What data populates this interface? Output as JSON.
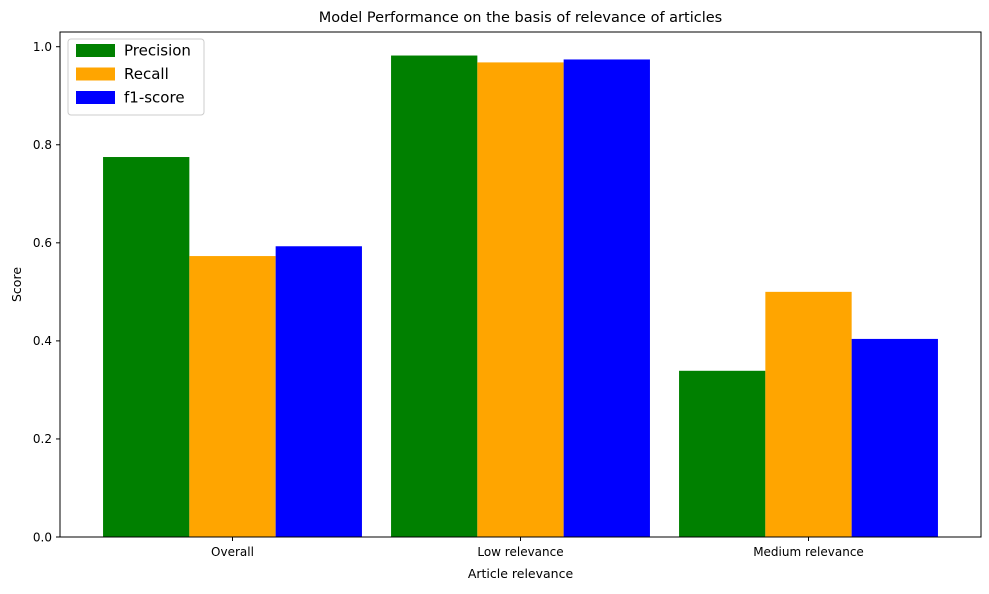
{
  "chart_data": {
    "type": "bar",
    "title": "Model Performance on the basis of relevance of articles",
    "xlabel": "Article relevance",
    "ylabel": "Score",
    "categories": [
      "Overall",
      "Low relevance",
      "Medium relevance"
    ],
    "series": [
      {
        "name": "Precision",
        "color": "#008000",
        "values": [
          0.775,
          0.982,
          0.339
        ]
      },
      {
        "name": "Recall",
        "color": "#ffa500",
        "values": [
          0.573,
          0.968,
          0.5
        ]
      },
      {
        "name": "f1-score",
        "color": "#0000ff",
        "values": [
          0.593,
          0.974,
          0.404
        ]
      }
    ],
    "ylim": [
      0,
      1.03
    ],
    "yticks": [
      0.0,
      0.2,
      0.4,
      0.6,
      0.8,
      1.0
    ],
    "ytick_labels": [
      "0.0",
      "0.2",
      "0.4",
      "0.6",
      "0.8",
      "1.0"
    ],
    "grid": false,
    "legend_position": "top-left"
  }
}
